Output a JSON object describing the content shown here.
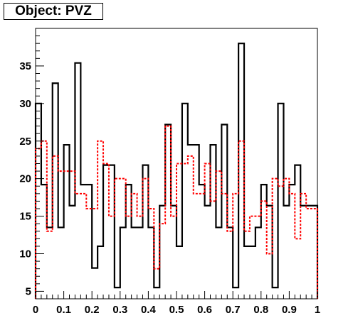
{
  "chart_data": {
    "type": "line",
    "title": "Object: PVZ",
    "xlim": [
      0,
      1
    ],
    "ylim": [
      4,
      40
    ],
    "x_ticks": [
      0,
      0.1,
      0.2,
      0.3,
      0.4,
      0.5,
      0.6,
      0.7,
      0.8,
      0.9,
      1
    ],
    "x_tick_labels": [
      "0",
      "0.1",
      "0.2",
      "0.3",
      "0.4",
      "0.5",
      "0.6",
      "0.7",
      "0.8",
      "0.9",
      "1"
    ],
    "y_ticks": [
      5,
      10,
      15,
      20,
      25,
      30,
      35
    ],
    "y_tick_labels": [
      "5",
      "10",
      "15",
      "20",
      "25",
      "30",
      "35"
    ],
    "bin_width": 0.02,
    "series": [
      {
        "style": "solid",
        "color": "#000000",
        "values": [
          30,
          19.2,
          13.5,
          32.7,
          13.5,
          24.5,
          16.4,
          35.4,
          19.2,
          19.2,
          8.1,
          11,
          21.8,
          21.8,
          5.5,
          13.5,
          19.2,
          13.5,
          13.5,
          21.8,
          13.5,
          5.5,
          16.4,
          27.2,
          16.4,
          11,
          30,
          24.5,
          24.5,
          19.2,
          16.4,
          24.5,
          13.5,
          27.2,
          13.5,
          5.5,
          38,
          11,
          11,
          13.5,
          19.2,
          16.4,
          5.5,
          30,
          16.4,
          19.2,
          21.8,
          16.4,
          16.4,
          16.4
        ]
      },
      {
        "style": "dashed",
        "color": "#ff0000",
        "values": [
          24,
          25,
          13,
          23,
          21,
          21,
          21,
          18,
          18,
          16,
          16,
          25,
          22,
          15,
          20,
          20,
          15,
          18,
          15,
          20,
          16,
          8,
          14,
          27,
          15,
          22,
          22,
          23,
          18,
          18,
          22,
          17,
          21,
          18,
          13,
          18,
          25,
          13,
          15,
          15,
          17,
          10,
          20,
          19,
          20,
          18,
          12,
          18,
          16,
          16
        ]
      }
    ]
  }
}
